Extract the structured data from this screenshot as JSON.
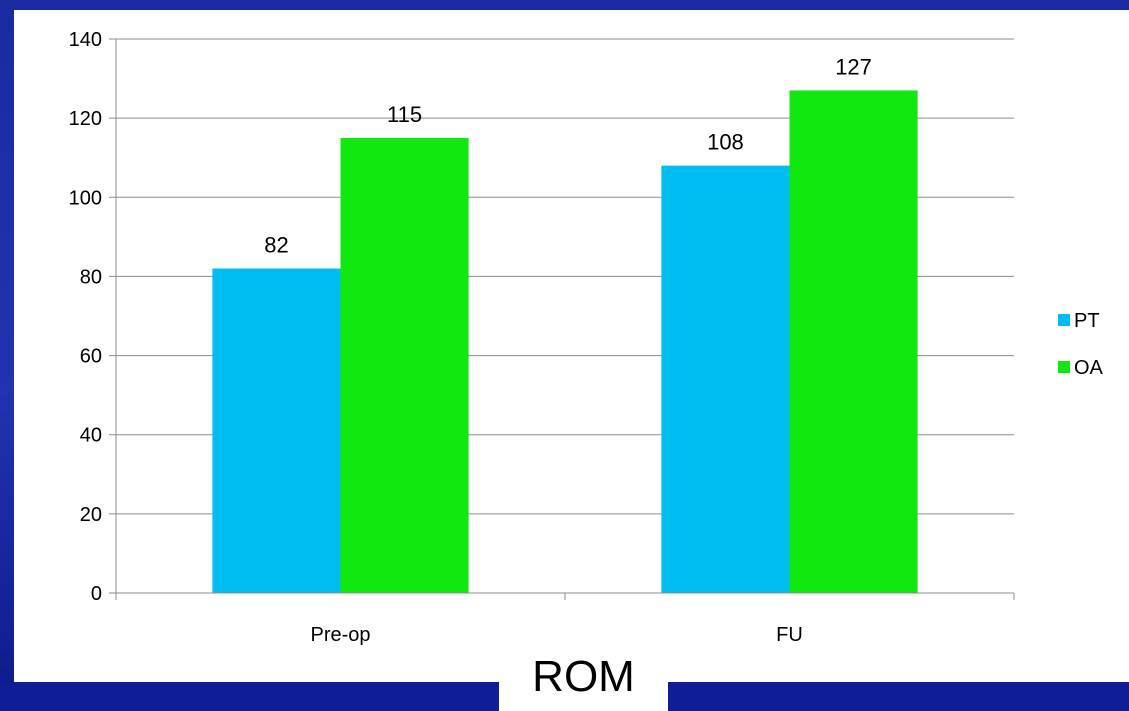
{
  "chart_data": {
    "type": "bar",
    "title": "ROM",
    "categories": [
      "Pre-op",
      "FU"
    ],
    "series": [
      {
        "name": "PT",
        "values": [
          82,
          108
        ],
        "color": "#00bff0"
      },
      {
        "name": "OA",
        "values": [
          115,
          127
        ],
        "color": "#10e810"
      }
    ],
    "ylim": [
      0,
      140
    ],
    "yticks": [
      0,
      20,
      40,
      60,
      80,
      100,
      120,
      140
    ],
    "grid": true,
    "legend": "right",
    "data_labels": true
  }
}
